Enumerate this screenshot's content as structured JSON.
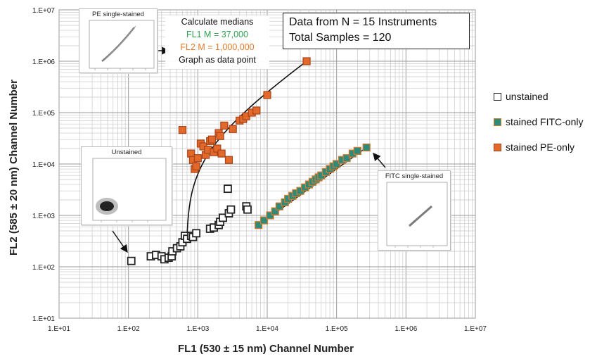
{
  "chart_data": {
    "type": "scatter",
    "xlabel": "FL1 (530 ± 15 nm) Channel Number",
    "ylabel": "FL2 (585 ± 20 nm) Channel Number",
    "scale": "log",
    "xlim": [
      10,
      10000000
    ],
    "ylim": [
      10,
      10000000
    ],
    "x_ticks": [
      "1.E+01",
      "1.E+02",
      "1.E+03",
      "1.E+04",
      "1.E+05",
      "1.E+06",
      "1.E+07"
    ],
    "y_ticks": [
      "1.E+01",
      "1.E+02",
      "1.E+03",
      "1.E+04",
      "1.E+05",
      "1.E+06",
      "1.E+07"
    ],
    "grid": true,
    "legend_position": "right",
    "series": [
      {
        "name": "unstained",
        "marker": "hollow-square",
        "color": "#ffffff",
        "edge": "#222222",
        "points": [
          [
            110,
            130
          ],
          [
            210,
            160
          ],
          [
            250,
            170
          ],
          [
            300,
            160
          ],
          [
            330,
            140
          ],
          [
            380,
            150
          ],
          [
            420,
            160
          ],
          [
            430,
            200
          ],
          [
            500,
            230
          ],
          [
            560,
            250
          ],
          [
            600,
            300
          ],
          [
            650,
            400
          ],
          [
            700,
            350
          ],
          [
            800,
            400
          ],
          [
            850,
            380
          ],
          [
            950,
            450
          ],
          [
            1500,
            550
          ],
          [
            1700,
            580
          ],
          [
            2000,
            650
          ],
          [
            2100,
            750
          ],
          [
            2300,
            900
          ],
          [
            2800,
            1100
          ],
          [
            3000,
            1300
          ],
          [
            5000,
            1500
          ],
          [
            5200,
            1300
          ],
          [
            2700,
            3300
          ]
        ]
      },
      {
        "name": "stained FITC-only",
        "marker": "square",
        "color": "#2e8b7a",
        "edge": "#d9792b",
        "points": [
          [
            7500,
            650
          ],
          [
            9000,
            800
          ],
          [
            11000,
            1000
          ],
          [
            13000,
            1200
          ],
          [
            15000,
            1500
          ],
          [
            18000,
            1800
          ],
          [
            20000,
            2100
          ],
          [
            23000,
            2400
          ],
          [
            26000,
            2700
          ],
          [
            30000,
            3000
          ],
          [
            35000,
            3500
          ],
          [
            40000,
            4000
          ],
          [
            45000,
            4500
          ],
          [
            50000,
            5000
          ],
          [
            55000,
            5500
          ],
          [
            60000,
            6000
          ],
          [
            70000,
            7000
          ],
          [
            80000,
            8000
          ],
          [
            90000,
            9000
          ],
          [
            100000,
            10000
          ],
          [
            120000,
            12000
          ],
          [
            140000,
            13000
          ],
          [
            170000,
            16000
          ],
          [
            200000,
            18000
          ],
          [
            270000,
            21000
          ]
        ]
      },
      {
        "name": "stained PE-only",
        "marker": "square",
        "color": "#e2692a",
        "edge": "#a8431a",
        "points": [
          [
            600,
            46000
          ],
          [
            800,
            16000
          ],
          [
            850,
            12000
          ],
          [
            900,
            8000
          ],
          [
            950,
            9000
          ],
          [
            1000,
            13000
          ],
          [
            1100,
            25000
          ],
          [
            1200,
            22000
          ],
          [
            1300,
            15000
          ],
          [
            1400,
            19000
          ],
          [
            1500,
            28000
          ],
          [
            1600,
            30000
          ],
          [
            1700,
            17000
          ],
          [
            1900,
            20000
          ],
          [
            2000,
            40000
          ],
          [
            2100,
            35000
          ],
          [
            2200,
            16000
          ],
          [
            2400,
            56000
          ],
          [
            2800,
            12000
          ],
          [
            3200,
            48000
          ],
          [
            4000,
            70000
          ],
          [
            4500,
            75000
          ],
          [
            5000,
            85000
          ],
          [
            6000,
            100000
          ],
          [
            7000,
            110000
          ],
          [
            10000,
            220000
          ],
          [
            37000,
            1000000
          ]
        ]
      }
    ],
    "fit_lines": [
      {
        "series": "stained FITC-only",
        "from": [
          7500,
          650
        ],
        "to": [
          270000,
          21000
        ]
      }
    ],
    "annotations": {
      "info_line1": "Data from N = 15 Instruments",
      "info_line2": "Total Samples = 120",
      "median_line1": "Calculate medians",
      "median_fl1": "FL1 M = 37,000",
      "median_fl2": "FL2 M = 1,000,000",
      "median_line4": "Graph as data point"
    },
    "insets": {
      "pe_title": "PE single-stained",
      "unstained_title": "Unstained",
      "fitc_title": "FITC single-stained"
    }
  },
  "legend": {
    "unstained": "unstained",
    "fitc": "stained FITC-only",
    "pe": "stained PE-only"
  }
}
